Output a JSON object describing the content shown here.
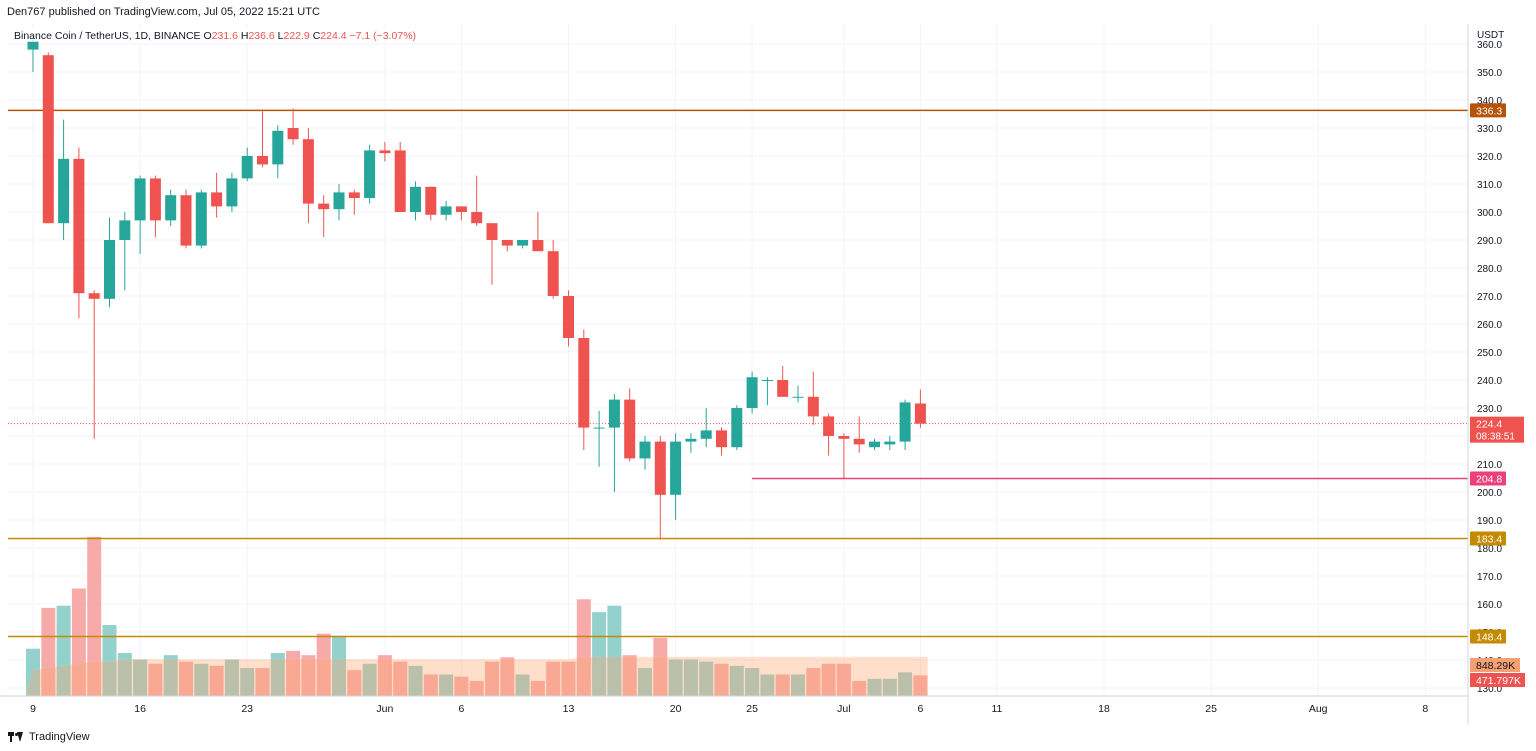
{
  "header": {
    "published": "Den767 published on TradingView.com, Jul 05, 2022 15:21 UTC"
  },
  "legend": {
    "symbol": "Binance Coin / TetherUS, 1D, BINANCE",
    "o_label": "O",
    "o": "231.6",
    "h_label": "H",
    "h": "236.6",
    "l_label": "L",
    "l": "222.9",
    "c_label": "C",
    "c": "224.4",
    "change": "−7.1 (−3.07%)"
  },
  "footer": {
    "brand": "TradingView"
  },
  "colors": {
    "up": "#26a69a",
    "down": "#ef5350",
    "vol_up": "#8fcfc9",
    "vol_down": "#f7a6a4",
    "line_336": "#b45309",
    "line_204": "#ec407a",
    "line_183": "#c48a00",
    "line_148": "#c48a00",
    "price_tag": "#ef5350",
    "vol_tag": "#f4a072"
  },
  "chart_data": {
    "type": "candlestick",
    "currency_label": "USDT",
    "y_ticks": [
      "360.0",
      "350.0",
      "340.0",
      "330.0",
      "320.0",
      "310.0",
      "300.0",
      "290.0",
      "280.0",
      "270.0",
      "260.0",
      "250.0",
      "240.0",
      "230.0",
      "220.0",
      "210.0",
      "200.0",
      "190.0",
      "180.0",
      "170.0",
      "160.0",
      "150.0",
      "140.0",
      "130.0"
    ],
    "ylim": [
      127.0,
      363.0
    ],
    "x_labels": [
      {
        "label": "9",
        "day": 0
      },
      {
        "label": "16",
        "day": 7
      },
      {
        "label": "23",
        "day": 14
      },
      {
        "label": "Jun",
        "day": 23
      },
      {
        "label": "6",
        "day": 28
      },
      {
        "label": "13",
        "day": 35
      },
      {
        "label": "20",
        "day": 42
      },
      {
        "label": "25",
        "day": 47
      },
      {
        "label": "Jul",
        "day": 53
      },
      {
        "label": "6",
        "day": 58
      },
      {
        "label": "11",
        "day": 63
      },
      {
        "label": "18",
        "day": 70
      },
      {
        "label": "25",
        "day": 77
      },
      {
        "label": "Aug",
        "day": 84
      },
      {
        "label": "8",
        "day": 91
      }
    ],
    "candles": [
      {
        "o": 358,
        "h": 363,
        "l": 350,
        "c": 361
      },
      {
        "o": 356,
        "h": 357,
        "l": 296,
        "c": 296
      },
      {
        "o": 296,
        "h": 333,
        "l": 290,
        "c": 319
      },
      {
        "o": 319,
        "h": 323,
        "l": 262,
        "c": 271
      },
      {
        "o": 271,
        "h": 272,
        "l": 219,
        "c": 269
      },
      {
        "o": 269,
        "h": 298,
        "l": 266,
        "c": 290
      },
      {
        "o": 290,
        "h": 300,
        "l": 272,
        "c": 297
      },
      {
        "o": 297,
        "h": 313,
        "l": 285,
        "c": 312
      },
      {
        "o": 312,
        "h": 313,
        "l": 291,
        "c": 297
      },
      {
        "o": 297,
        "h": 308,
        "l": 295,
        "c": 306
      },
      {
        "o": 306,
        "h": 308,
        "l": 287,
        "c": 288
      },
      {
        "o": 288,
        "h": 308,
        "l": 287,
        "c": 307
      },
      {
        "o": 307,
        "h": 314,
        "l": 298,
        "c": 302
      },
      {
        "o": 302,
        "h": 314,
        "l": 300,
        "c": 312
      },
      {
        "o": 312,
        "h": 323,
        "l": 311,
        "c": 320
      },
      {
        "o": 320,
        "h": 336,
        "l": 316,
        "c": 317
      },
      {
        "o": 317,
        "h": 331,
        "l": 312,
        "c": 329
      },
      {
        "o": 330,
        "h": 337,
        "l": 324,
        "c": 326
      },
      {
        "o": 326,
        "h": 330,
        "l": 296,
        "c": 303
      },
      {
        "o": 303,
        "h": 306,
        "l": 291,
        "c": 301
      },
      {
        "o": 301,
        "h": 310,
        "l": 297,
        "c": 307
      },
      {
        "o": 307,
        "h": 308,
        "l": 299,
        "c": 305
      },
      {
        "o": 305,
        "h": 324,
        "l": 303,
        "c": 322
      },
      {
        "o": 322,
        "h": 325,
        "l": 318,
        "c": 321
      },
      {
        "o": 322,
        "h": 325,
        "l": 300,
        "c": 300
      },
      {
        "o": 300,
        "h": 311,
        "l": 297,
        "c": 309
      },
      {
        "o": 309,
        "h": 309,
        "l": 297,
        "c": 299
      },
      {
        "o": 299,
        "h": 304,
        "l": 297,
        "c": 302
      },
      {
        "o": 302,
        "h": 302,
        "l": 297,
        "c": 300
      },
      {
        "o": 300,
        "h": 313,
        "l": 295,
        "c": 296
      },
      {
        "o": 296,
        "h": 296,
        "l": 274,
        "c": 290
      },
      {
        "o": 290,
        "h": 290,
        "l": 286,
        "c": 288
      },
      {
        "o": 288,
        "h": 290,
        "l": 287,
        "c": 290
      },
      {
        "o": 290,
        "h": 300,
        "l": 286,
        "c": 286
      },
      {
        "o": 286,
        "h": 290,
        "l": 269,
        "c": 270
      },
      {
        "o": 270,
        "h": 272,
        "l": 252,
        "c": 255
      },
      {
        "o": 255,
        "h": 258,
        "l": 215,
        "c": 223
      },
      {
        "o": 223,
        "h": 229,
        "l": 209,
        "c": 223
      },
      {
        "o": 223,
        "h": 235,
        "l": 200,
        "c": 233
      },
      {
        "o": 233,
        "h": 237,
        "l": 211,
        "c": 212
      },
      {
        "o": 212,
        "h": 220,
        "l": 208,
        "c": 218
      },
      {
        "o": 218,
        "h": 220,
        "l": 183,
        "c": 199
      },
      {
        "o": 199,
        "h": 221,
        "l": 190,
        "c": 218
      },
      {
        "o": 218,
        "h": 221,
        "l": 214,
        "c": 219
      },
      {
        "o": 219,
        "h": 230,
        "l": 216,
        "c": 222
      },
      {
        "o": 222,
        "h": 223,
        "l": 213,
        "c": 216
      },
      {
        "o": 216,
        "h": 231,
        "l": 215,
        "c": 230
      },
      {
        "o": 230,
        "h": 243,
        "l": 228,
        "c": 241
      },
      {
        "o": 240,
        "h": 241,
        "l": 231,
        "c": 240
      },
      {
        "o": 240,
        "h": 245,
        "l": 234,
        "c": 234
      },
      {
        "o": 234,
        "h": 238,
        "l": 232,
        "c": 234
      },
      {
        "o": 234,
        "h": 243,
        "l": 224,
        "c": 227
      },
      {
        "o": 227,
        "h": 228,
        "l": 213,
        "c": 220
      },
      {
        "o": 220,
        "h": 221,
        "l": 205,
        "c": 219
      },
      {
        "o": 219,
        "h": 227,
        "l": 214,
        "c": 217
      },
      {
        "o": 216,
        "h": 219,
        "l": 215,
        "c": 218
      },
      {
        "o": 217,
        "h": 220,
        "l": 215,
        "c": 218
      },
      {
        "o": 218,
        "h": 233,
        "l": 215,
        "c": 232
      },
      {
        "o": 231.6,
        "h": 236.6,
        "l": 222.9,
        "c": 224.4
      }
    ],
    "volume": [
      2.2,
      4.1,
      4.2,
      5.0,
      7.4,
      3.3,
      2.0,
      1.7,
      1.5,
      1.9,
      1.6,
      1.5,
      1.4,
      1.7,
      1.3,
      1.3,
      2.0,
      2.1,
      1.9,
      2.9,
      2.8,
      1.2,
      1.5,
      1.9,
      1.6,
      1.4,
      1.0,
      1.0,
      0.9,
      0.7,
      1.6,
      1.8,
      1.0,
      0.7,
      1.6,
      1.6,
      4.5,
      3.9,
      4.2,
      1.9,
      1.3,
      2.7,
      1.7,
      1.7,
      1.6,
      1.5,
      1.4,
      1.3,
      1.0,
      1.0,
      1.0,
      1.3,
      1.5,
      1.5,
      0.7,
      0.8,
      0.8,
      1.1,
      0.96
    ],
    "vol_ma": [
      1.2,
      1.3,
      1.4,
      1.5,
      1.6,
      1.6,
      1.7,
      1.7,
      1.7,
      1.7,
      1.7,
      1.7,
      1.7,
      1.7,
      1.7,
      1.7,
      1.7,
      1.7,
      1.7,
      1.7,
      1.7,
      1.7,
      1.7,
      1.7,
      1.7,
      1.7,
      1.7,
      1.7,
      1.7,
      1.7,
      1.7,
      1.7,
      1.7,
      1.7,
      1.7,
      1.7,
      1.8,
      1.8,
      1.8,
      1.8,
      1.8,
      1.8,
      1.8,
      1.8,
      1.8,
      1.8,
      1.8,
      1.8,
      1.8,
      1.8,
      1.8,
      1.8,
      1.8,
      1.8,
      1.8,
      1.8,
      1.8,
      1.8,
      1.8
    ],
    "hlines": [
      {
        "value": 336.3,
        "label": "336.3",
        "color": "#b45309",
        "from_day": 0
      },
      {
        "value": 204.8,
        "label": "204.8",
        "color": "#ec407a",
        "from_day": 47
      },
      {
        "value": 183.4,
        "label": "183.4",
        "color": "#c48a00",
        "from_day": 0
      },
      {
        "value": 148.4,
        "label": "148.4",
        "color": "#c48a00",
        "from_day": 0
      }
    ],
    "last_price": {
      "value": 224.4,
      "label": "224.4",
      "countdown": "08:38:51"
    },
    "volume_labels": [
      "848.29K",
      "471.797K"
    ]
  }
}
